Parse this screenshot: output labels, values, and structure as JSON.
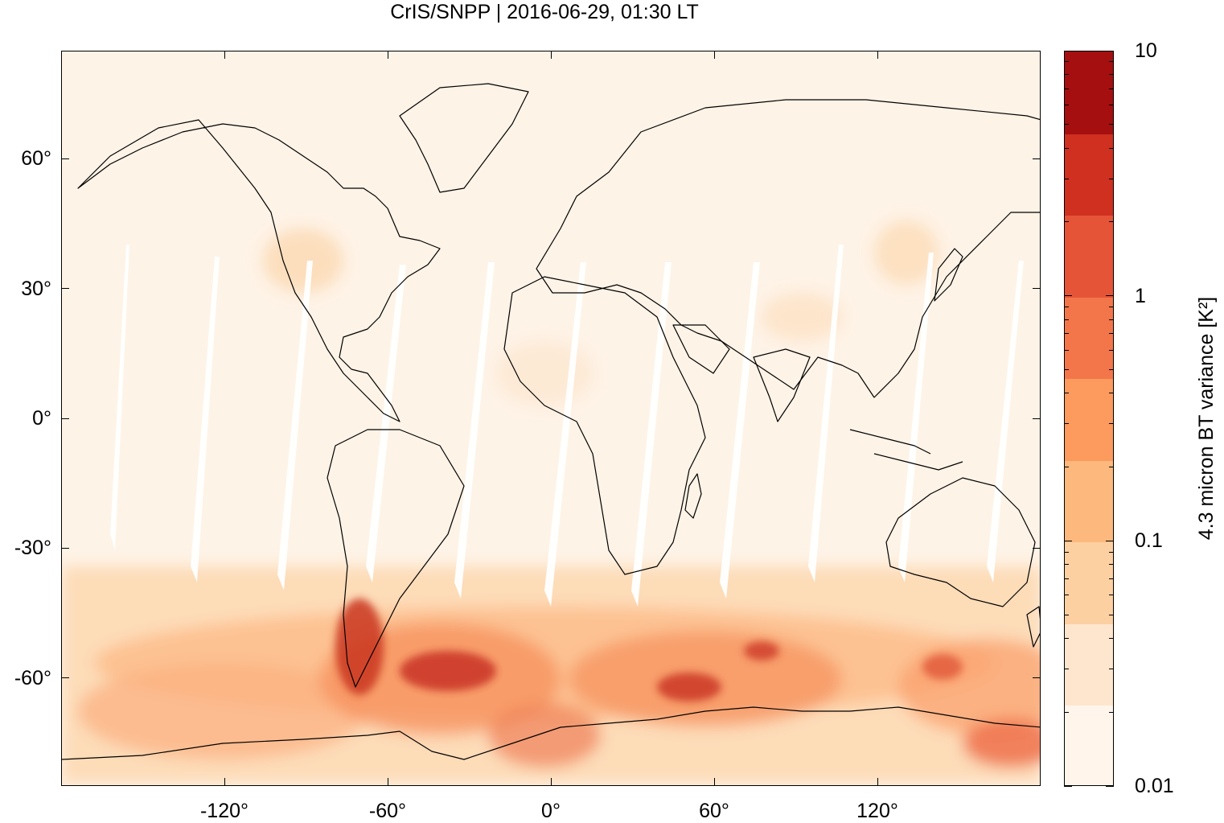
{
  "title": "CrIS/SNPP | 2016-06-29, 01:30 LT",
  "map": {
    "projection": "plate carree",
    "lon_range": [
      -180,
      180
    ],
    "lat_range": [
      -85,
      85
    ],
    "y_ticks": [
      {
        "value": 60,
        "label": "60°"
      },
      {
        "value": 30,
        "label": "30°"
      },
      {
        "value": 0,
        "label": "0°"
      },
      {
        "value": -30,
        "label": "-30°"
      },
      {
        "value": -60,
        "label": "-60°"
      }
    ],
    "x_ticks": [
      {
        "value": -120,
        "label": "-120°"
      },
      {
        "value": -60,
        "label": "-60°"
      },
      {
        "value": 0,
        "label": "0°"
      },
      {
        "value": 60,
        "label": "60°"
      },
      {
        "value": 120,
        "label": "120°"
      }
    ],
    "background_color": "#fef3e7",
    "coastline_color": "#000000"
  },
  "colorbar": {
    "label": "4.3 micron BT variance [K²]",
    "scale": "log",
    "range": [
      0.01,
      10
    ],
    "tick_labels": [
      {
        "value": 10,
        "label": "10"
      },
      {
        "value": 1,
        "label": "1"
      },
      {
        "value": 0.1,
        "label": "0.1"
      },
      {
        "value": 0.01,
        "label": "0.01"
      }
    ],
    "colors": [
      "#fff5eb",
      "#fee6ce",
      "#fdd0a2",
      "#fdb97d",
      "#fd9a5e",
      "#f3764a",
      "#e65438",
      "#cf3020",
      "#a50f0f"
    ]
  }
}
